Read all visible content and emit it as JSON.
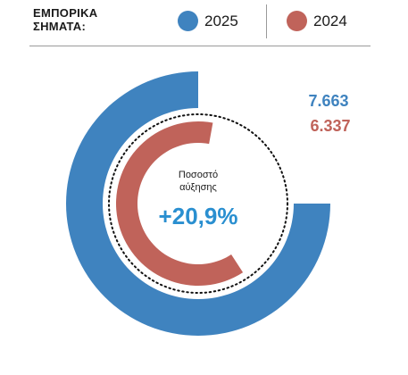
{
  "header": {
    "title_line1": "ΕΜΠΟΡΙΚΑ",
    "title_line2": "ΣΗΜΑΤΑ:"
  },
  "legend": [
    {
      "label": "2025",
      "color": "#3f83bf"
    },
    {
      "label": "2024",
      "color": "#c0635a"
    }
  ],
  "chart_data": {
    "type": "donut",
    "series": [
      {
        "name": "2025",
        "value": 7663,
        "label": "7.663",
        "color": "#3f83bf"
      },
      {
        "name": "2024",
        "value": 6337,
        "label": "6.337",
        "color": "#c0635a"
      }
    ],
    "center": {
      "caption": "Ποσοστό αύξησης",
      "value": "+20,9%",
      "value_color": "#2a8fd0"
    },
    "legend_position": "top"
  }
}
